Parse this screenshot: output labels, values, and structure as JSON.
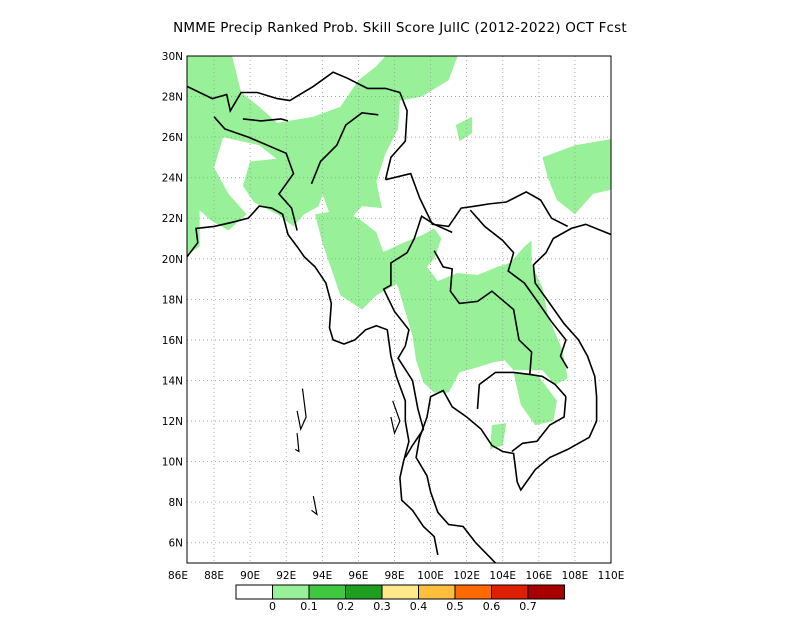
{
  "title": "NMME Precip Ranked Prob. Skill Score JulIC (2012-2022) OCT Fcst",
  "map": {
    "lon_range": [
      86.5,
      110
    ],
    "lat_range": [
      5,
      30
    ],
    "lon_ticks": [
      "86E",
      "88E",
      "90E",
      "92E",
      "94E",
      "96E",
      "98E",
      "100E",
      "102E",
      "104E",
      "106E",
      "108E",
      "110E"
    ],
    "lat_ticks": [
      "6N",
      "8N",
      "10N",
      "12N",
      "14N",
      "16N",
      "18N",
      "20N",
      "22N",
      "24N",
      "26N",
      "28N",
      "30N"
    ],
    "grid": true,
    "skill_color": "#98f098",
    "coast_color": "#000000"
  },
  "colorbar": {
    "colors": [
      "#ffffff",
      "#98f098",
      "#3fc83f",
      "#1e9e1e",
      "#ffe88a",
      "#ffbe3c",
      "#ff6a00",
      "#e01e00",
      "#a80000"
    ],
    "labels": [
      "0",
      "0.1",
      "0.2",
      "0.3",
      "0.4",
      "0.5",
      "0.6",
      "0.7"
    ]
  }
}
